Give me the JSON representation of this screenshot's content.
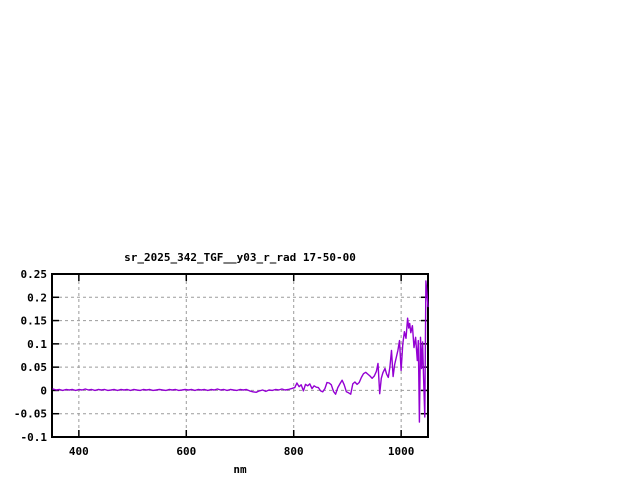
{
  "window": {
    "background": "#ffffff"
  },
  "chart_data": {
    "type": "line",
    "title": "sr_2025_342_TGF__y03_r_rad 17-50-00",
    "xlabel": "nm",
    "ylabel": "",
    "xlim": [
      350,
      1050
    ],
    "ylim": [
      -0.1,
      0.25
    ],
    "grid": true,
    "legend_position": "none",
    "line_color": "#9400d3",
    "grid_color": "#9b9b9b",
    "axis_color": "#000000",
    "text_color": "#000000",
    "x_ticks": [
      {
        "value": 400,
        "label": "400"
      },
      {
        "value": 600,
        "label": "600"
      },
      {
        "value": 800,
        "label": "800"
      },
      {
        "value": 1000,
        "label": "1000"
      }
    ],
    "y_ticks": [
      {
        "value": 0.25,
        "label": "0.25"
      },
      {
        "value": 0.2,
        "label": "0.2"
      },
      {
        "value": 0.15,
        "label": "0.15"
      },
      {
        "value": 0.1,
        "label": "0.1"
      },
      {
        "value": 0.05,
        "label": "0.05"
      },
      {
        "value": 0,
        "label": "0"
      },
      {
        "value": -0.05,
        "label": "-0.05"
      },
      {
        "value": -0.1,
        "label": "-0.1"
      }
    ],
    "points": [
      [
        352,
        0.003
      ],
      [
        358,
        0.001
      ],
      [
        364,
        0.002
      ],
      [
        370,
        0
      ],
      [
        376,
        0.002
      ],
      [
        382,
        0.001
      ],
      [
        388,
        0.002
      ],
      [
        394,
        0
      ],
      [
        400,
        0.002
      ],
      [
        406,
        0.001
      ],
      [
        412,
        0.003
      ],
      [
        418,
        0.001
      ],
      [
        424,
        0.002
      ],
      [
        430,
        0
      ],
      [
        436,
        0.002
      ],
      [
        442,
        0.001
      ],
      [
        448,
        0.002
      ],
      [
        454,
        0
      ],
      [
        460,
        0.001
      ],
      [
        466,
        0.002
      ],
      [
        472,
        0
      ],
      [
        478,
        0.002
      ],
      [
        484,
        0.001
      ],
      [
        490,
        0.002
      ],
      [
        496,
        0
      ],
      [
        502,
        0.002
      ],
      [
        508,
        0.001
      ],
      [
        514,
        0
      ],
      [
        520,
        0.002
      ],
      [
        526,
        0.001
      ],
      [
        532,
        0.002
      ],
      [
        538,
        0
      ],
      [
        544,
        0.001
      ],
      [
        550,
        0.002
      ],
      [
        556,
        0.001
      ],
      [
        562,
        0
      ],
      [
        568,
        0.002
      ],
      [
        574,
        0.001
      ],
      [
        580,
        0.002
      ],
      [
        586,
        0
      ],
      [
        592,
        0.001
      ],
      [
        598,
        0.002
      ],
      [
        604,
        0.001
      ],
      [
        610,
        0.002
      ],
      [
        616,
        0
      ],
      [
        622,
        0.002
      ],
      [
        628,
        0.001
      ],
      [
        634,
        0.002
      ],
      [
        640,
        0
      ],
      [
        646,
        0.002
      ],
      [
        652,
        0.001
      ],
      [
        658,
        0.003
      ],
      [
        664,
        0.001
      ],
      [
        670,
        0.002
      ],
      [
        676,
        0
      ],
      [
        682,
        0.002
      ],
      [
        688,
        0.001
      ],
      [
        694,
        0
      ],
      [
        700,
        0.002
      ],
      [
        706,
        0.001
      ],
      [
        712,
        0.002
      ],
      [
        718,
        -0.001
      ],
      [
        724,
        -0.003
      ],
      [
        730,
        -0.004
      ],
      [
        736,
        -0.001
      ],
      [
        742,
        0.001
      ],
      [
        748,
        -0.002
      ],
      [
        754,
        0.001
      ],
      [
        760,
        0
      ],
      [
        766,
        0.002
      ],
      [
        772,
        0.001
      ],
      [
        778,
        0.003
      ],
      [
        784,
        0.001
      ],
      [
        790,
        0.002
      ],
      [
        796,
        0.004
      ],
      [
        802,
        0.006
      ],
      [
        806,
        0.016
      ],
      [
        810,
        0.008
      ],
      [
        814,
        0.012
      ],
      [
        818,
        -0.001
      ],
      [
        822,
        0.013
      ],
      [
        826,
        0.01
      ],
      [
        830,
        0.014
      ],
      [
        834,
        0.004
      ],
      [
        838,
        0.01
      ],
      [
        842,
        0.007
      ],
      [
        846,
        0.006
      ],
      [
        850,
        -0.001
      ],
      [
        854,
        -0.003
      ],
      [
        858,
        0.004
      ],
      [
        862,
        0.017
      ],
      [
        866,
        0.016
      ],
      [
        870,
        0.012
      ],
      [
        874,
        -0.002
      ],
      [
        878,
        -0.008
      ],
      [
        882,
        0.006
      ],
      [
        886,
        0.014
      ],
      [
        890,
        0.022
      ],
      [
        894,
        0.012
      ],
      [
        898,
        -0.003
      ],
      [
        902,
        -0.005
      ],
      [
        906,
        -0.008
      ],
      [
        910,
        0.014
      ],
      [
        914,
        0.018
      ],
      [
        918,
        0.013
      ],
      [
        922,
        0.017
      ],
      [
        926,
        0.028
      ],
      [
        930,
        0.036
      ],
      [
        934,
        0.039
      ],
      [
        938,
        0.035
      ],
      [
        942,
        0.031
      ],
      [
        946,
        0.026
      ],
      [
        950,
        0.031
      ],
      [
        954,
        0.041
      ],
      [
        957,
        0.058
      ],
      [
        960,
        -0.007
      ],
      [
        963,
        0.026
      ],
      [
        966,
        0.038
      ],
      [
        970,
        0.047
      ],
      [
        973,
        0.035
      ],
      [
        976,
        0.028
      ],
      [
        979,
        0.05
      ],
      [
        982,
        0.086
      ],
      [
        985,
        0.03
      ],
      [
        988,
        0.056
      ],
      [
        991,
        0.071
      ],
      [
        994,
        0.086
      ],
      [
        997,
        0.107
      ],
      [
        1000,
        0.043
      ],
      [
        1003,
        0.1
      ],
      [
        1006,
        0.126
      ],
      [
        1009,
        0.112
      ],
      [
        1012,
        0.155
      ],
      [
        1014,
        0.134
      ],
      [
        1016,
        0.144
      ],
      [
        1018,
        0.124
      ],
      [
        1021,
        0.139
      ],
      [
        1024,
        0.092
      ],
      [
        1027,
        0.114
      ],
      [
        1030,
        0.064
      ],
      [
        1032,
        0.107
      ],
      [
        1034,
        -0.068
      ],
      [
        1036,
        0.114
      ],
      [
        1038,
        0.047
      ],
      [
        1040,
        0.104
      ],
      [
        1042,
        0.018
      ],
      [
        1044,
        -0.057
      ],
      [
        1046,
        0.235
      ],
      [
        1048,
        0.21
      ],
      [
        1050,
        0.18
      ]
    ]
  }
}
